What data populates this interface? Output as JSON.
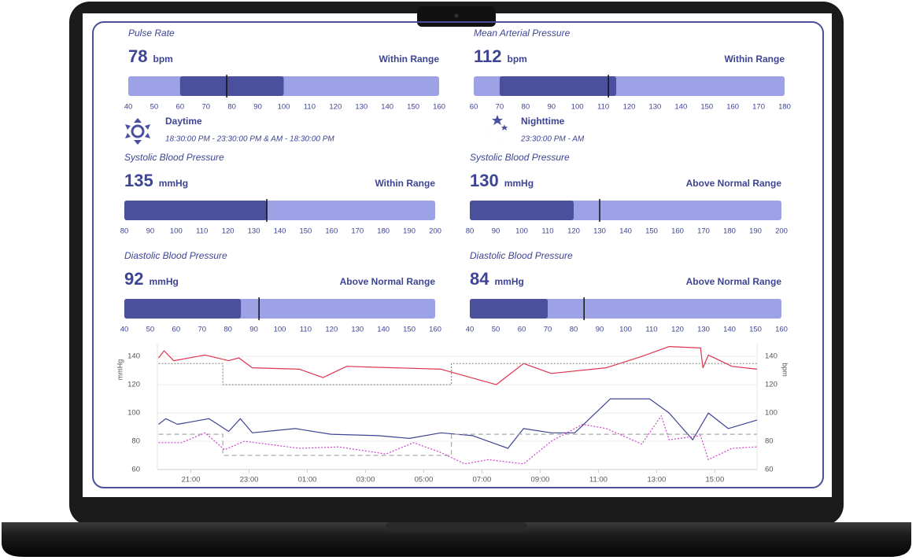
{
  "gauges": [
    {
      "title": "Pulse Rate",
      "value": 78,
      "unit": "bpm",
      "status": "Within Range",
      "lim": [
        40,
        160
      ],
      "normal_range": [
        60,
        100
      ],
      "ticks": [
        40,
        50,
        60,
        70,
        80,
        90,
        100,
        110,
        120,
        130,
        140,
        150,
        160
      ]
    },
    {
      "title": "Mean Arterial Pressure",
      "value": 112,
      "unit": "bpm",
      "status": "Within Range",
      "lim": [
        60,
        180
      ],
      "normal_range": [
        70,
        115
      ],
      "ticks": [
        60,
        70,
        80,
        90,
        100,
        110,
        120,
        130,
        140,
        150,
        160,
        170,
        180
      ]
    },
    {
      "title": "Systolic Blood Pressure",
      "value": 135,
      "unit": "mmHg",
      "status": "Within Range",
      "lim": [
        80,
        200
      ],
      "normal_range": [
        80,
        135
      ],
      "ticks": [
        80,
        90,
        100,
        110,
        120,
        130,
        140,
        150,
        160,
        170,
        180,
        190,
        200
      ]
    },
    {
      "title": "Systolic Blood Pressure",
      "value": 130,
      "unit": "mmHg",
      "status": "Above Normal Range",
      "lim": [
        80,
        200
      ],
      "normal_range": [
        80,
        120
      ],
      "ticks": [
        80,
        90,
        100,
        110,
        120,
        130,
        140,
        150,
        160,
        170,
        180,
        190,
        200
      ]
    },
    {
      "title": "Diastolic Blood Pressure",
      "value": 92,
      "unit": "mmHg",
      "status": "Above Normal Range",
      "lim": [
        40,
        160
      ],
      "normal_range": [
        40,
        85
      ],
      "ticks": [
        40,
        50,
        60,
        70,
        80,
        90,
        100,
        110,
        120,
        130,
        140,
        150,
        160
      ]
    },
    {
      "title": "Diastolic Blood Pressure",
      "value": 84,
      "unit": "mmHg",
      "status": "Above Normal Range",
      "lim": [
        40,
        160
      ],
      "normal_range": [
        40,
        70
      ],
      "ticks": [
        40,
        50,
        60,
        70,
        80,
        90,
        100,
        110,
        120,
        130,
        140,
        150,
        160
      ]
    }
  ],
  "gauge_colors": {
    "track": "#9da1e6",
    "band": "#4a4f9e",
    "text": "#3d4494"
  },
  "periods": [
    {
      "label": "Daytime",
      "hours": "18:30:00 PM - 23:30:00 PM & AM - 18:30:00 PM"
    },
    {
      "label": "Nighttime",
      "hours": "23:30:00 PM - AM"
    }
  ],
  "chart_data": {
    "type": "line",
    "y_label": "mmHg",
    "y2_label": "bpm",
    "grid": true,
    "xlim": [
      19.85,
      40.45
    ],
    "xticks": [
      {
        "value": 21,
        "label": "21:00"
      },
      {
        "value": 23,
        "label": "23:00"
      },
      {
        "value": 25,
        "label": "01:00"
      },
      {
        "value": 27,
        "label": "03:00"
      },
      {
        "value": 29,
        "label": "05:00"
      },
      {
        "value": 31,
        "label": "07:00"
      },
      {
        "value": 33,
        "label": "09:00"
      },
      {
        "value": 35,
        "label": "11:00"
      },
      {
        "value": 37,
        "label": "13:00"
      },
      {
        "value": 39,
        "label": "15:00"
      }
    ],
    "ylim": [
      60,
      149
    ],
    "yticks": [
      60,
      80,
      100,
      120,
      140
    ],
    "y2lim": [
      60,
      149
    ],
    "y2ticks": [
      60,
      80,
      100,
      120,
      140
    ],
    "series": [
      {
        "color": "#e0344f",
        "style": "solid",
        "x": [
          19.89,
          20.08,
          20.41,
          21.49,
          22.3,
          22.65,
          23.11,
          24.73,
          25.54,
          26.35,
          29.59,
          31.49,
          32.43,
          33.38,
          35.27,
          36.49,
          37.43,
          38.51,
          38.59,
          38.78,
          39.59,
          40.45
        ],
        "values": [
          139,
          144,
          137,
          141,
          137,
          139,
          132,
          131,
          125,
          133,
          131,
          120,
          135,
          128,
          132,
          140,
          147,
          146,
          132,
          141,
          133,
          131
        ]
      },
      {
        "color": "#888888",
        "style": "dotted",
        "x": [
          19.89,
          22.1,
          22.1,
          29.95,
          29.95,
          40.45
        ],
        "values": [
          135,
          135,
          120,
          120,
          135,
          135
        ]
      },
      {
        "color": "#3d4494",
        "style": "solid",
        "x": [
          19.89,
          20.14,
          20.54,
          21.62,
          22.3,
          22.7,
          23.11,
          24.59,
          25.81,
          27.43,
          28.51,
          29.59,
          30.68,
          31.89,
          32.43,
          33.38,
          34.19,
          35.41,
          36.76,
          37.43,
          38.24,
          38.78,
          39.46,
          40.45
        ],
        "values": [
          92,
          96,
          92,
          96,
          87,
          96,
          86,
          89,
          85,
          84,
          82,
          86,
          84,
          75,
          89,
          86,
          86,
          110,
          110,
          100,
          81,
          100,
          89,
          95
        ]
      },
      {
        "color": "#aaaaaa",
        "style": "dashed",
        "x": [
          19.89,
          22.1,
          22.1,
          29.95,
          29.95,
          40.45
        ],
        "values": [
          85,
          85,
          70,
          70,
          85,
          85
        ]
      },
      {
        "color": "#d040d0",
        "style": "dotted",
        "axis": "y2",
        "x": [
          19.89,
          20.68,
          21.49,
          22.16,
          22.84,
          24.73,
          26.08,
          27.7,
          28.65,
          29.59,
          30.41,
          31.22,
          32.43,
          33.38,
          34.46,
          35.27,
          36.49,
          37.16,
          37.43,
          38.51,
          38.78,
          39.59,
          40.45
        ],
        "values": [
          79,
          79,
          86,
          74,
          80,
          75,
          76,
          71,
          79,
          72,
          64,
          67,
          64,
          80,
          92,
          89,
          78,
          98,
          81,
          84,
          67,
          75,
          76
        ]
      }
    ]
  }
}
